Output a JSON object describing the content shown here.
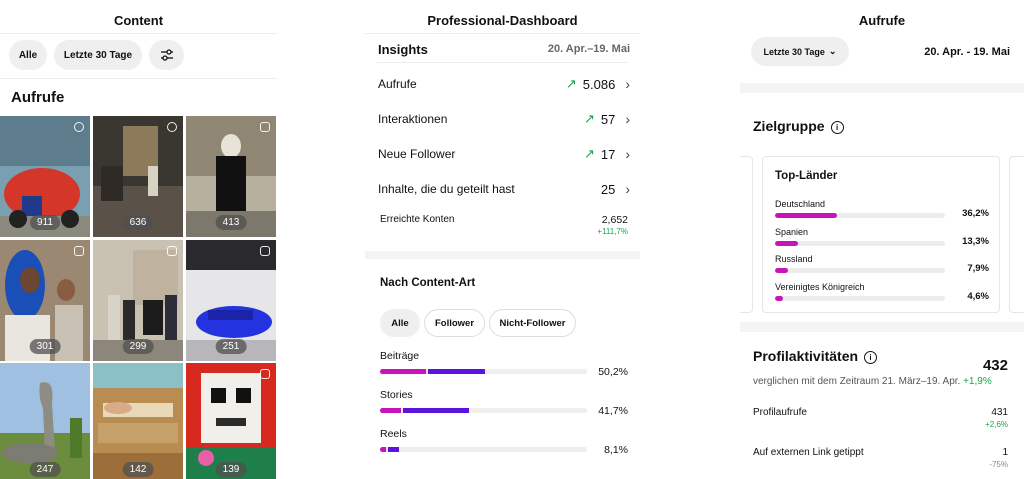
{
  "content_panel": {
    "title": "Content",
    "filters": [
      "Alle",
      "Letzte 30 Tage"
    ],
    "filter_settings_icon": "sliders-icon",
    "section_title": "Aufrufe",
    "tiles": [
      {
        "count": "911",
        "icon": "reel-icon"
      },
      {
        "count": "636",
        "icon": "reel-icon"
      },
      {
        "count": "413",
        "icon": "camera-icon"
      },
      {
        "count": "301",
        "icon": "carousel-icon"
      },
      {
        "count": "299",
        "icon": "carousel-icon"
      },
      {
        "count": "251",
        "icon": "carousel-icon"
      },
      {
        "count": "247",
        "icon": ""
      },
      {
        "count": "142",
        "icon": ""
      },
      {
        "count": "139",
        "icon": "carousel-icon"
      }
    ]
  },
  "dashboard_panel": {
    "title": "Professional-Dashboard",
    "insights_label": "Insights",
    "date_range": "20. Apr.–19. Mai",
    "rows": [
      {
        "label": "Aufrufe",
        "value": "5.086",
        "trend": "up"
      },
      {
        "label": "Interaktionen",
        "value": "57",
        "trend": "up"
      },
      {
        "label": "Neue Follower",
        "value": "17",
        "trend": "up"
      },
      {
        "label": "Inhalte, die du geteilt hast",
        "value": "25",
        "trend": ""
      }
    ],
    "reached": {
      "label": "Erreichte Konten",
      "value": "2,652",
      "change": "+111,7%"
    },
    "by_content_title": "Nach Content-Art",
    "content_filters": [
      "Alle",
      "Follower",
      "Nicht-Follower"
    ],
    "content_types": [
      {
        "label": "Beiträge",
        "percent": "50,2%",
        "follower_share": 0.22,
        "nonfollower_share": 0.28
      },
      {
        "label": "Stories",
        "percent": "41,7%",
        "follower_share": 0.1,
        "nonfollower_share": 0.32
      },
      {
        "label": "Reels",
        "percent": "8,1%",
        "follower_share": 0.03,
        "nonfollower_share": 0.05
      }
    ],
    "colors": {
      "follower": "#c913b9",
      "nonfollower": "#5b14e0",
      "up": "#1aa34a"
    }
  },
  "views_panel": {
    "title": "Aufrufe",
    "period_select": "Letzte 30 Tage",
    "date_range": "20. Apr. - 19. Mai",
    "audience_title": "Zielgruppe",
    "top_countries_title": "Top-Länder",
    "countries": [
      {
        "name": "Deutschland",
        "value": "36,2%",
        "fraction": 0.362
      },
      {
        "name": "Spanien",
        "value": "13,3%",
        "fraction": 0.133
      },
      {
        "name": "Russland",
        "value": "7,9%",
        "fraction": 0.079
      },
      {
        "name": "Vereinigtes Königreich",
        "value": "4,6%",
        "fraction": 0.046
      }
    ],
    "activity_title": "Profilaktivitäten",
    "activity_total": "432",
    "activity_compare": "verglichen mit dem Zeitraum 21. März–19. Apr.",
    "activity_compare_change": "+1,9%",
    "activity_rows": [
      {
        "label": "Profilaufrufe",
        "value": "431",
        "change": "+2,6%"
      },
      {
        "label": "Auf externen Link getippt",
        "value": "1",
        "change": "-75%"
      }
    ]
  }
}
